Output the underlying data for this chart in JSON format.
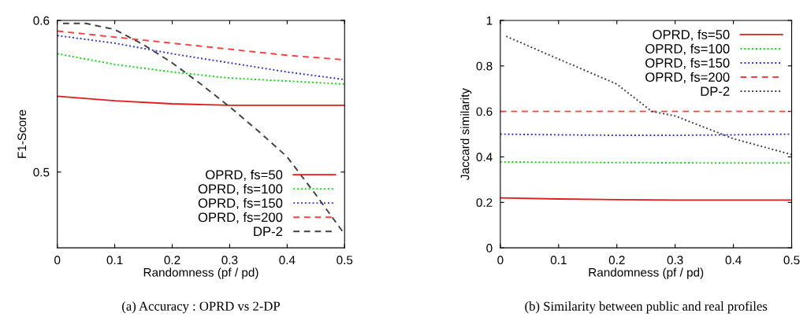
{
  "chart_data": [
    {
      "type": "line",
      "xlabel": "Randomness (pf / pd)",
      "ylabel": "F1-Score",
      "xlim": [
        0,
        0.5
      ],
      "ylim": [
        0.45,
        0.6
      ],
      "xticks": [
        0,
        0.1,
        0.2,
        0.3,
        0.4,
        0.5
      ],
      "yticks": [
        0.5,
        0.6
      ],
      "legend": "lower right",
      "grid": false,
      "annotations": [
        "(a) Accuracy : OPRD vs 2-DP"
      ],
      "series": [
        {
          "name": "OPRD, fs=50",
          "color": "#e41a1c",
          "line_style": "solid",
          "x": [
            0,
            0.1,
            0.2,
            0.3,
            0.4,
            0.5
          ],
          "values": [
            0.55,
            0.547,
            0.545,
            0.544,
            0.544,
            0.544
          ]
        },
        {
          "name": "OPRD, fs=100",
          "color": "#00e000",
          "line_style": "dotted",
          "x": [
            0,
            0.1,
            0.2,
            0.3,
            0.4,
            0.5
          ],
          "values": [
            0.578,
            0.571,
            0.566,
            0.562,
            0.56,
            0.558
          ]
        },
        {
          "name": "OPRD, fs=150",
          "color": "#3030e0",
          "line_style": "dotted",
          "x": [
            0,
            0.1,
            0.2,
            0.3,
            0.4,
            0.5
          ],
          "values": [
            0.59,
            0.585,
            0.578,
            0.572,
            0.566,
            0.561
          ]
        },
        {
          "name": "OPRD, fs=200",
          "color": "#ff4040",
          "line_style": "dashed",
          "x": [
            0,
            0.1,
            0.2,
            0.3,
            0.4,
            0.5
          ],
          "values": [
            0.593,
            0.589,
            0.585,
            0.581,
            0.577,
            0.574
          ]
        },
        {
          "name": "DP-2",
          "color": "#404040",
          "line_style": "dashed",
          "x": [
            0.01,
            0.05,
            0.1,
            0.15,
            0.2,
            0.25,
            0.3,
            0.35,
            0.4,
            0.45,
            0.5
          ],
          "values": [
            0.598,
            0.598,
            0.594,
            0.584,
            0.572,
            0.558,
            0.543,
            0.527,
            0.51,
            0.485,
            0.459
          ]
        }
      ]
    },
    {
      "type": "line",
      "xlabel": "Randomness (pf / pd)",
      "ylabel": "Jaccard similarity",
      "xlim": [
        0,
        0.5
      ],
      "ylim": [
        0,
        1
      ],
      "xticks": [
        0,
        0.1,
        0.2,
        0.3,
        0.4,
        0.5
      ],
      "yticks": [
        0,
        0.2,
        0.4,
        0.6,
        0.8,
        1
      ],
      "legend": "upper right",
      "grid": false,
      "annotations": [
        "(b) Similarity between public and real profiles"
      ],
      "series": [
        {
          "name": "OPRD, fs=50",
          "color": "#e41a1c",
          "line_style": "solid",
          "x": [
            0,
            0.1,
            0.2,
            0.3,
            0.4,
            0.5
          ],
          "values": [
            0.22,
            0.215,
            0.212,
            0.21,
            0.21,
            0.21
          ]
        },
        {
          "name": "OPRD, fs=100",
          "color": "#00e000",
          "line_style": "dotted",
          "x": [
            0,
            0.1,
            0.2,
            0.3,
            0.4,
            0.5
          ],
          "values": [
            0.378,
            0.376,
            0.375,
            0.374,
            0.373,
            0.373
          ]
        },
        {
          "name": "OPRD, fs=150",
          "color": "#3030e0",
          "line_style": "dotted",
          "x": [
            0,
            0.1,
            0.2,
            0.3,
            0.4,
            0.5
          ],
          "values": [
            0.5,
            0.497,
            0.495,
            0.495,
            0.497,
            0.5
          ]
        },
        {
          "name": "OPRD, fs=200",
          "color": "#ff4040",
          "line_style": "dashed",
          "x": [
            0,
            0.1,
            0.2,
            0.3,
            0.4,
            0.5
          ],
          "values": [
            0.6,
            0.6,
            0.6,
            0.6,
            0.6,
            0.6
          ]
        },
        {
          "name": "DP-2",
          "color": "#404040",
          "line_style": "dotted",
          "x": [
            0.01,
            0.1,
            0.2,
            0.26,
            0.3,
            0.4,
            0.5
          ],
          "values": [
            0.93,
            0.83,
            0.72,
            0.6,
            0.58,
            0.48,
            0.41
          ]
        }
      ]
    }
  ]
}
